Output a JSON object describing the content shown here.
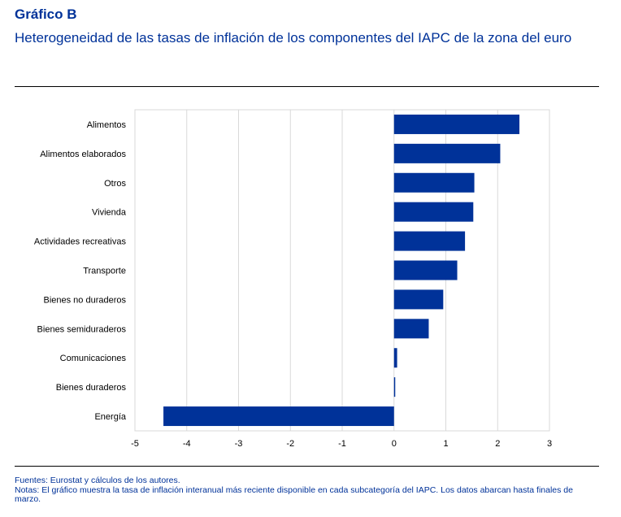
{
  "heading": {
    "label": "Gráfico B",
    "title": "Heterogeneidad de las tasas de inflación de los componentes del IAPC de la zona del euro"
  },
  "chart_data": {
    "type": "bar",
    "orientation": "horizontal",
    "categories": [
      "Alimentos",
      "Alimentos elaborados",
      "Otros",
      "Vivienda",
      "Actividades recreativas",
      "Transporte",
      "Bienes no duraderos",
      "Bienes semiduraderos",
      "Comunicaciones",
      "Bienes duraderos",
      "Energía"
    ],
    "values": [
      2.42,
      2.05,
      1.55,
      1.53,
      1.37,
      1.22,
      0.95,
      0.67,
      0.06,
      0.02,
      -4.45
    ],
    "xlim": [
      -5,
      3
    ],
    "xticks": [
      "-5",
      "-4",
      "-3",
      "-2",
      "-1",
      "0",
      "1",
      "2",
      "3"
    ],
    "grid": true,
    "bar_color": "#003299"
  },
  "footer": {
    "sources": "Fuentes: Eurostat y cálculos de los autores.",
    "notes": "Notas: El gráfico muestra la tasa de inflación interanual más reciente disponible en cada subcategoría del IAPC. Los datos abarcan hasta finales de marzo."
  }
}
